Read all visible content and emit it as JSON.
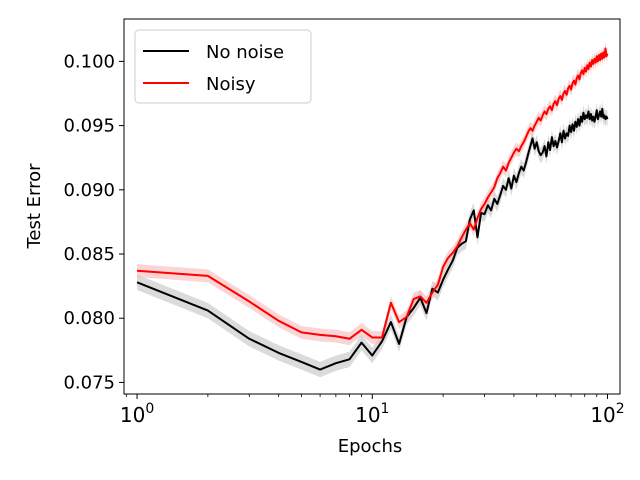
{
  "chart_data": {
    "type": "line",
    "title": "",
    "xlabel": "Epochs",
    "ylabel": "Test Error",
    "xscale": "log",
    "xlim": [
      0.88,
      113
    ],
    "ylim": [
      0.0741,
      0.1033
    ],
    "grid": false,
    "legend_position": "top-left",
    "x_ticks": [
      {
        "value": 1,
        "base": "10",
        "exp": "0"
      },
      {
        "value": 10,
        "base": "10",
        "exp": "1"
      },
      {
        "value": 100,
        "base": "10",
        "exp": "2"
      }
    ],
    "y_ticks": [
      0.075,
      0.08,
      0.085,
      0.09,
      0.095,
      0.1
    ],
    "y_tick_labels": [
      "0.075",
      "0.080",
      "0.085",
      "0.090",
      "0.095",
      "0.100"
    ],
    "series": [
      {
        "name": "No noise",
        "color": "#000000",
        "band_color": "#bdbdbd",
        "band": 0.0006,
        "points": [
          [
            1,
            0.0828
          ],
          [
            2,
            0.0806
          ],
          [
            3,
            0.0784
          ],
          [
            4,
            0.0773
          ],
          [
            5,
            0.0766
          ],
          [
            6,
            0.076
          ],
          [
            7,
            0.0765
          ],
          [
            8,
            0.0768
          ],
          [
            9,
            0.0781
          ],
          [
            10,
            0.0771
          ],
          [
            11,
            0.0782
          ],
          [
            12,
            0.0797
          ],
          [
            13,
            0.078
          ],
          [
            14,
            0.0801
          ],
          [
            15,
            0.0808
          ],
          [
            16,
            0.0816
          ],
          [
            17,
            0.0804
          ],
          [
            18,
            0.0823
          ],
          [
            19,
            0.082
          ],
          [
            20,
            0.083
          ],
          [
            21,
            0.0838
          ],
          [
            22,
            0.0845
          ],
          [
            23,
            0.0855
          ],
          [
            24,
            0.0858
          ],
          [
            25,
            0.086
          ],
          [
            26,
            0.0877
          ],
          [
            27,
            0.0884
          ],
          [
            28,
            0.0863
          ],
          [
            29,
            0.0882
          ],
          [
            30,
            0.0881
          ],
          [
            31,
            0.0888
          ],
          [
            32,
            0.0884
          ],
          [
            33,
            0.0893
          ],
          [
            34,
            0.0889
          ],
          [
            35,
            0.0896
          ],
          [
            36,
            0.0903
          ],
          [
            37,
            0.09
          ],
          [
            38,
            0.0909
          ],
          [
            39,
            0.0901
          ],
          [
            40,
            0.0911
          ],
          [
            41,
            0.0906
          ],
          [
            42,
            0.0913
          ],
          [
            43,
            0.0918
          ],
          [
            44,
            0.0915
          ],
          [
            45,
            0.0921
          ],
          [
            46,
            0.0928
          ],
          [
            47,
            0.0934
          ],
          [
            48,
            0.094
          ],
          [
            49,
            0.0932
          ],
          [
            50,
            0.0937
          ],
          [
            51,
            0.093
          ],
          [
            52,
            0.0927
          ],
          [
            53,
            0.0929
          ],
          [
            54,
            0.0934
          ],
          [
            55,
            0.0926
          ],
          [
            56,
            0.0937
          ],
          [
            57,
            0.0931
          ],
          [
            58,
            0.0941
          ],
          [
            59,
            0.0934
          ],
          [
            60,
            0.0938
          ],
          [
            61,
            0.0933
          ],
          [
            62,
            0.0938
          ],
          [
            63,
            0.0944
          ],
          [
            64,
            0.0937
          ],
          [
            65,
            0.0946
          ],
          [
            66,
            0.094
          ],
          [
            67,
            0.0944
          ],
          [
            68,
            0.0942
          ],
          [
            69,
            0.095
          ],
          [
            70,
            0.0945
          ],
          [
            71,
            0.0951
          ],
          [
            72,
            0.0946
          ],
          [
            73,
            0.0953
          ],
          [
            74,
            0.0949
          ],
          [
            75,
            0.0955
          ],
          [
            76,
            0.095
          ],
          [
            77,
            0.0957
          ],
          [
            78,
            0.0953
          ],
          [
            79,
            0.096
          ],
          [
            80,
            0.0955
          ],
          [
            81,
            0.0958
          ],
          [
            82,
            0.0956
          ],
          [
            83,
            0.0961
          ],
          [
            84,
            0.0955
          ],
          [
            85,
            0.0959
          ],
          [
            86,
            0.0954
          ],
          [
            87,
            0.0957
          ],
          [
            88,
            0.0953
          ],
          [
            89,
            0.0957
          ],
          [
            90,
            0.0962
          ],
          [
            91,
            0.0955
          ],
          [
            92,
            0.0958
          ],
          [
            93,
            0.0961
          ],
          [
            94,
            0.0957
          ],
          [
            95,
            0.0963
          ],
          [
            96,
            0.0956
          ],
          [
            97,
            0.0958
          ],
          [
            98,
            0.0955
          ],
          [
            99,
            0.0957
          ],
          [
            100,
            0.0955
          ]
        ]
      },
      {
        "name": "Noisy",
        "color": "#ff0000",
        "band_color": "#f7b3b3",
        "band": 0.0005,
        "points": [
          [
            1,
            0.0837
          ],
          [
            2,
            0.0833
          ],
          [
            3,
            0.0813
          ],
          [
            4,
            0.0798
          ],
          [
            5,
            0.0789
          ],
          [
            6,
            0.0787
          ],
          [
            7,
            0.0786
          ],
          [
            8,
            0.0784
          ],
          [
            9,
            0.0791
          ],
          [
            10,
            0.0785
          ],
          [
            11,
            0.0785
          ],
          [
            12,
            0.0812
          ],
          [
            13,
            0.0797
          ],
          [
            14,
            0.0801
          ],
          [
            15,
            0.0815
          ],
          [
            16,
            0.0817
          ],
          [
            17,
            0.0812
          ],
          [
            18,
            0.082
          ],
          [
            19,
            0.0826
          ],
          [
            20,
            0.084
          ],
          [
            21,
            0.0847
          ],
          [
            22,
            0.0851
          ],
          [
            23,
            0.0856
          ],
          [
            24,
            0.0863
          ],
          [
            25,
            0.0869
          ],
          [
            26,
            0.0874
          ],
          [
            27,
            0.0869
          ],
          [
            28,
            0.0878
          ],
          [
            29,
            0.0885
          ],
          [
            30,
            0.0889
          ],
          [
            31,
            0.0894
          ],
          [
            32,
            0.0898
          ],
          [
            33,
            0.0902
          ],
          [
            34,
            0.0909
          ],
          [
            35,
            0.0913
          ],
          [
            36,
            0.0918
          ],
          [
            37,
            0.0915
          ],
          [
            38,
            0.0921
          ],
          [
            39,
            0.0925
          ],
          [
            40,
            0.0929
          ],
          [
            41,
            0.0932
          ],
          [
            42,
            0.093
          ],
          [
            43,
            0.0934
          ],
          [
            44,
            0.0937
          ],
          [
            45,
            0.0941
          ],
          [
            46,
            0.0945
          ],
          [
            47,
            0.0948
          ],
          [
            48,
            0.0946
          ],
          [
            49,
            0.095
          ],
          [
            50,
            0.0953
          ],
          [
            51,
            0.0956
          ],
          [
            52,
            0.0954
          ],
          [
            53,
            0.0958
          ],
          [
            54,
            0.0961
          ],
          [
            55,
            0.0959
          ],
          [
            56,
            0.0963
          ],
          [
            57,
            0.0965
          ],
          [
            58,
            0.0962
          ],
          [
            59,
            0.0967
          ],
          [
            60,
            0.0969
          ],
          [
            61,
            0.0966
          ],
          [
            62,
            0.0971
          ],
          [
            63,
            0.0973
          ],
          [
            64,
            0.097
          ],
          [
            65,
            0.0975
          ],
          [
            66,
            0.0977
          ],
          [
            67,
            0.0974
          ],
          [
            68,
            0.0979
          ],
          [
            69,
            0.0981
          ],
          [
            70,
            0.0978
          ],
          [
            71,
            0.0983
          ],
          [
            72,
            0.0985
          ],
          [
            73,
            0.0982
          ],
          [
            74,
            0.0987
          ],
          [
            75,
            0.0989
          ],
          [
            76,
            0.0986
          ],
          [
            77,
            0.0991
          ],
          [
            78,
            0.0993
          ],
          [
            79,
            0.099
          ],
          [
            80,
            0.0995
          ],
          [
            81,
            0.0992
          ],
          [
            82,
            0.0997
          ],
          [
            83,
            0.0994
          ],
          [
            84,
            0.0999
          ],
          [
            85,
            0.0996
          ],
          [
            86,
            0.1001
          ],
          [
            87,
            0.0998
          ],
          [
            88,
            0.1002
          ],
          [
            89,
            0.0999
          ],
          [
            90,
            0.1004
          ],
          [
            91,
            0.1
          ],
          [
            92,
            0.1005
          ],
          [
            93,
            0.1001
          ],
          [
            94,
            0.1006
          ],
          [
            95,
            0.1002
          ],
          [
            96,
            0.1007
          ],
          [
            97,
            0.1003
          ],
          [
            98,
            0.101
          ],
          [
            99,
            0.1004
          ],
          [
            100,
            0.1006
          ]
        ]
      }
    ]
  }
}
